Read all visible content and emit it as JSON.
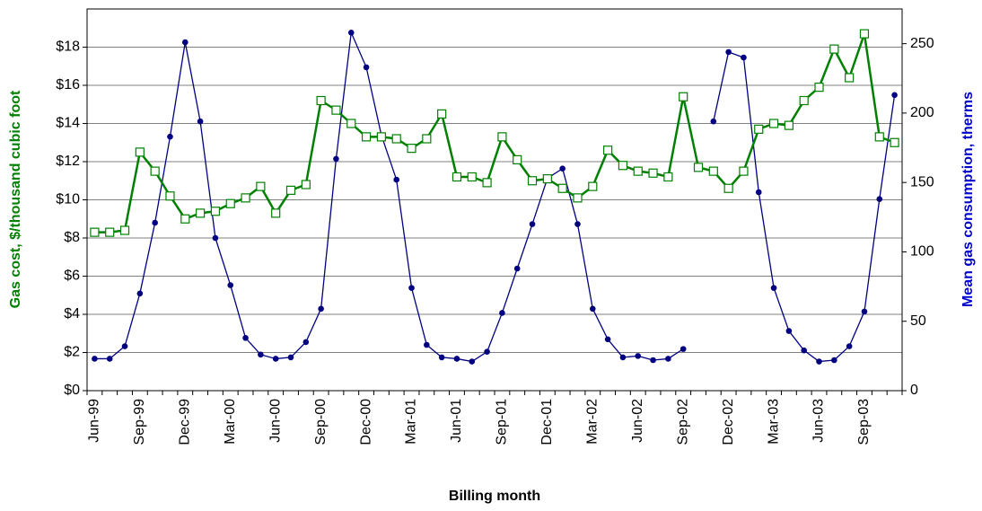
{
  "chart_data": {
    "type": "line",
    "x_label": "Billing month",
    "y_label": "Gas cost, $/thousand cubic foot",
    "y2_label": "Mean gas consumption, therms",
    "categories": [
      "Jun-99",
      null,
      null,
      "Sep-99",
      null,
      null,
      "Dec-99",
      null,
      null,
      "Mar-00",
      null,
      null,
      "Jun-00",
      null,
      null,
      "Sep-00",
      null,
      null,
      "Dec-00",
      null,
      null,
      "Mar-01",
      null,
      null,
      "Jun-01",
      null,
      null,
      "Sep-01",
      null,
      null,
      "Dec-01",
      null,
      null,
      "Mar-02",
      null,
      null,
      "Jun-02",
      null,
      null,
      "Sep-02",
      null,
      null,
      "Dec-02",
      null,
      null,
      "Mar-03",
      null,
      null,
      "Jun-03",
      null,
      null,
      "Sep-03",
      null,
      null
    ],
    "series": [
      {
        "name": "Gas cost",
        "color": "#008000",
        "marker": "square",
        "axis": "y",
        "values": [
          8.3,
          8.3,
          8.4,
          12.5,
          11.5,
          10.2,
          9.0,
          9.3,
          9.4,
          9.8,
          10.1,
          10.7,
          9.3,
          10.5,
          10.8,
          15.2,
          14.7,
          14.0,
          13.3,
          13.3,
          13.2,
          12.7,
          13.2,
          14.5,
          11.2,
          11.2,
          10.9,
          13.3,
          12.1,
          11.0,
          11.1,
          10.6,
          10.1,
          10.7,
          12.6,
          11.8,
          11.5,
          11.4,
          11.2,
          15.4,
          11.7,
          11.5,
          10.6,
          11.5,
          13.7,
          14.0,
          13.9,
          15.2,
          15.9,
          17.9,
          16.4,
          18.7,
          13.3,
          13.0
        ]
      },
      {
        "name": "Mean gas consumption",
        "color": "#000080",
        "marker": "circle",
        "axis": "y2",
        "values": [
          23,
          23,
          32,
          70,
          121,
          183,
          251,
          194,
          110,
          76,
          38,
          26,
          23,
          24,
          35,
          59,
          167,
          258,
          233,
          184,
          152,
          74,
          33,
          24,
          23,
          21,
          28,
          56,
          88,
          120,
          153,
          160,
          120,
          59,
          37,
          24,
          25,
          22,
          23,
          30,
          null,
          194,
          244,
          240,
          143,
          74,
          43,
          29,
          21,
          22,
          32,
          57,
          138,
          213
        ]
      }
    ],
    "ylim": [
      0,
      20
    ],
    "yticks": [
      {
        "value": 0,
        "label": "$0"
      },
      {
        "value": 2,
        "label": "$2"
      },
      {
        "value": 4,
        "label": "$4"
      },
      {
        "value": 6,
        "label": "$6"
      },
      {
        "value": 8,
        "label": "$8"
      },
      {
        "value": 10,
        "label": "$10"
      },
      {
        "value": 12,
        "label": "$12"
      },
      {
        "value": 14,
        "label": "$14"
      },
      {
        "value": 16,
        "label": "$16"
      },
      {
        "value": 18,
        "label": "$18"
      }
    ],
    "y2lim": [
      0,
      275
    ],
    "y2ticks": [
      0,
      50,
      100,
      150,
      200,
      250
    ],
    "grid": true,
    "y_label_color": "#008000",
    "y2_label_color": "#0000cc"
  }
}
